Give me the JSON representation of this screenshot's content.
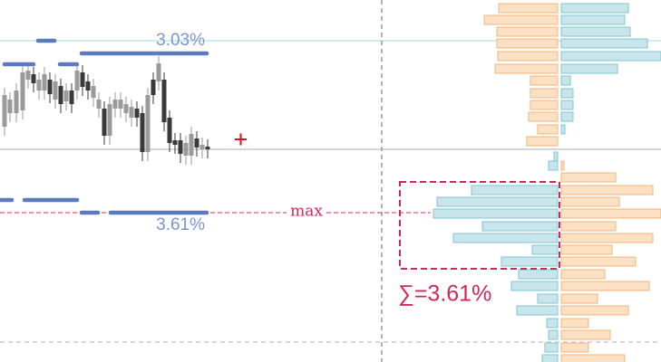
{
  "labels": {
    "upper_percent": "3.03%",
    "lower_percent": "3.61%",
    "max_line": "max",
    "sum": "∑=3.61%"
  }
}
